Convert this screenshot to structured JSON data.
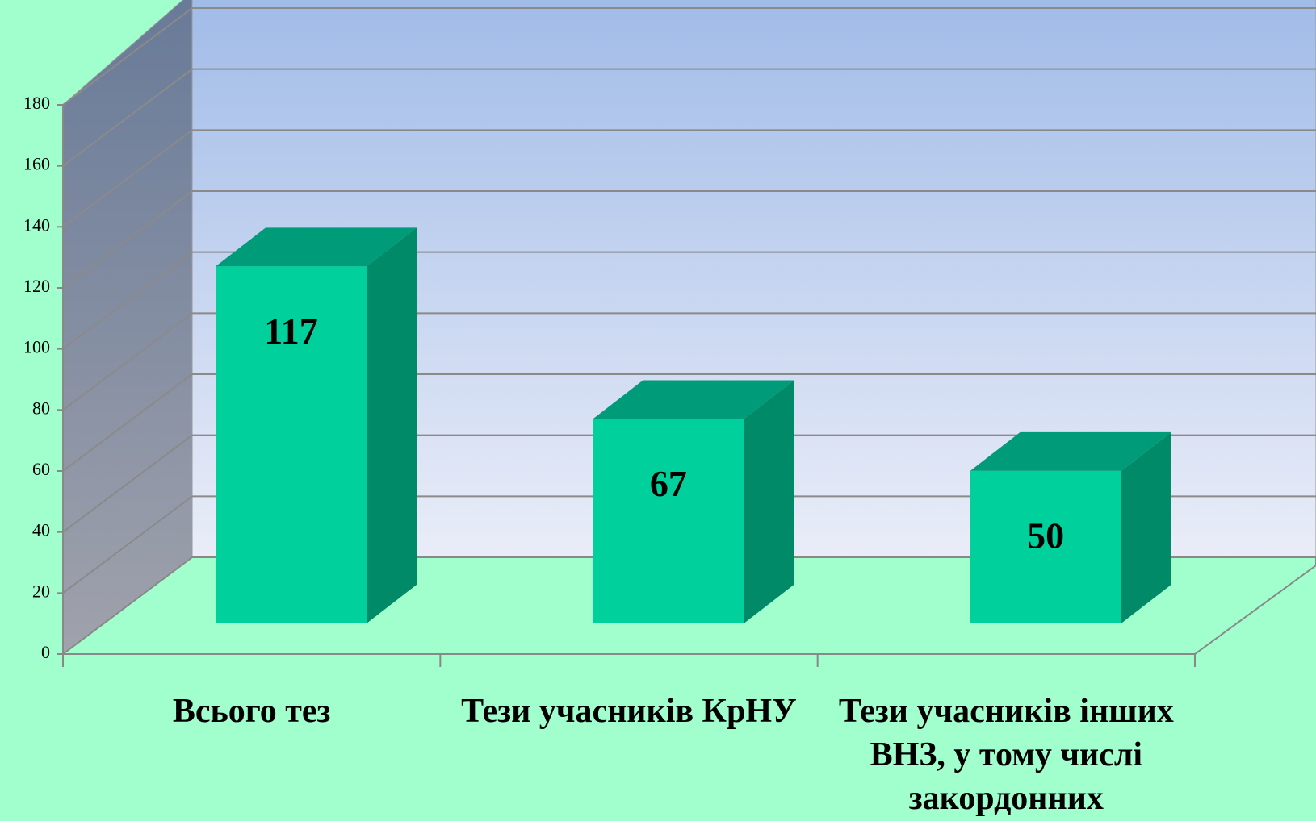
{
  "chart_data": {
    "type": "bar3d",
    "categories": [
      "Всього тез",
      "Тези учасників КрНУ",
      "Тези учасників інших ВНЗ, у тому числі закордонних"
    ],
    "values": [
      117,
      67,
      50
    ],
    "color": "#00d09c",
    "ylim": [
      0,
      180
    ],
    "yticks": [
      0,
      20,
      40,
      60,
      80,
      100,
      120,
      140,
      160,
      180
    ],
    "grid": true
  }
}
